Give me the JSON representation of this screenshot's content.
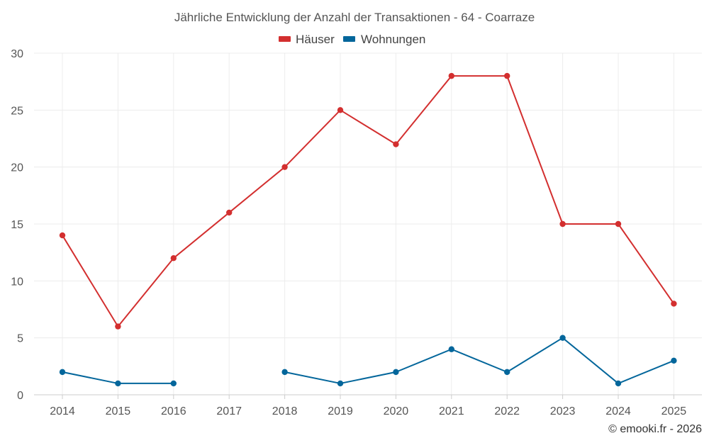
{
  "chart_data": {
    "type": "line",
    "title": "Jährliche Entwicklung der Anzahl der Transaktionen - 64 - Coarraze",
    "categories": [
      "2014",
      "2015",
      "2016",
      "2017",
      "2018",
      "2019",
      "2020",
      "2021",
      "2022",
      "2023",
      "2024",
      "2025"
    ],
    "series": [
      {
        "name": "Häuser",
        "color": "#d32f2f",
        "values": [
          14,
          6,
          12,
          16,
          20,
          25,
          22,
          28,
          28,
          15,
          15,
          8
        ]
      },
      {
        "name": "Wohnungen",
        "color": "#03669b",
        "values": [
          2,
          1,
          1,
          null,
          2,
          1,
          2,
          4,
          2,
          5,
          1,
          3
        ]
      }
    ],
    "ylim": [
      0,
      30
    ],
    "yticks": [
      0,
      5,
      10,
      15,
      20,
      25,
      30
    ],
    "xlabel": "",
    "ylabel": "",
    "grid": true,
    "legend_position": "top-center"
  },
  "credit": "© emooki.fr - 2026"
}
